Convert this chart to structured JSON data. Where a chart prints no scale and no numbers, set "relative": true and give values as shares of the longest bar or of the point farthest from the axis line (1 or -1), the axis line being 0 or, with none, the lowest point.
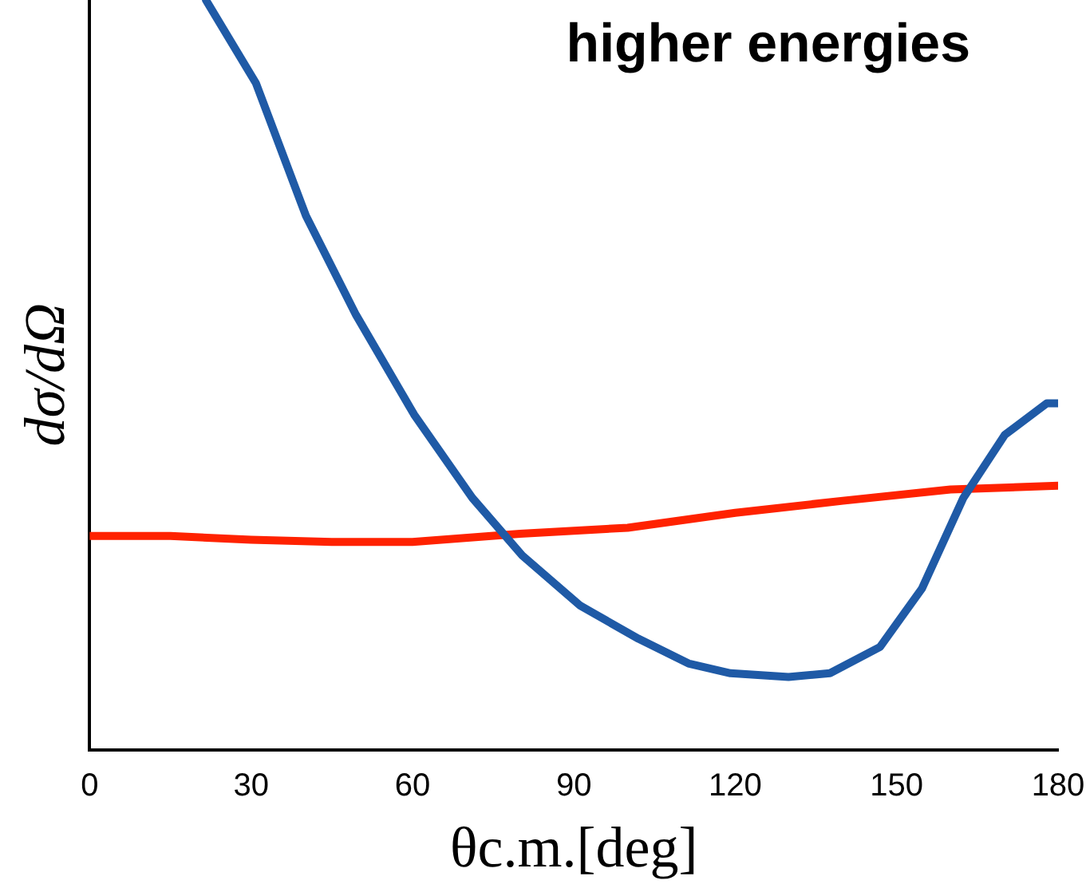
{
  "chart_data": {
    "type": "line",
    "relative": true,
    "xlabel": "θc.m.[deg]",
    "ylabel": "dσ/dΩ",
    "annotations": [
      "higher energies"
    ],
    "xlim": [
      0,
      180
    ],
    "xticks": [
      0,
      30,
      60,
      90,
      120,
      150,
      180
    ],
    "grid": false,
    "legend": false,
    "marker": "none",
    "line_style": "solid",
    "series": [
      {
        "color": "#1f5aa6",
        "x": [
          21.6,
          30.9,
          40.2,
          49.5,
          60.3,
          71.1,
          80.4,
          91.2,
          102,
          111.3,
          119.1,
          129.9,
          137.6,
          146.9,
          154.7,
          162.4,
          170.1,
          177.9,
          180
        ],
        "values": [
          1.0,
          0.889,
          0.712,
          0.58,
          0.447,
          0.336,
          0.259,
          0.192,
          0.148,
          0.115,
          0.102,
          0.097,
          0.102,
          0.137,
          0.215,
          0.336,
          0.42,
          0.462,
          0.462
        ]
      },
      {
        "color": "#ff2200",
        "x": [
          0,
          15,
          30,
          45,
          60,
          80,
          100,
          120,
          140,
          160,
          180
        ],
        "values": [
          0.285,
          0.285,
          0.28,
          0.277,
          0.277,
          0.288,
          0.296,
          0.316,
          0.332,
          0.347,
          0.352
        ]
      }
    ]
  }
}
